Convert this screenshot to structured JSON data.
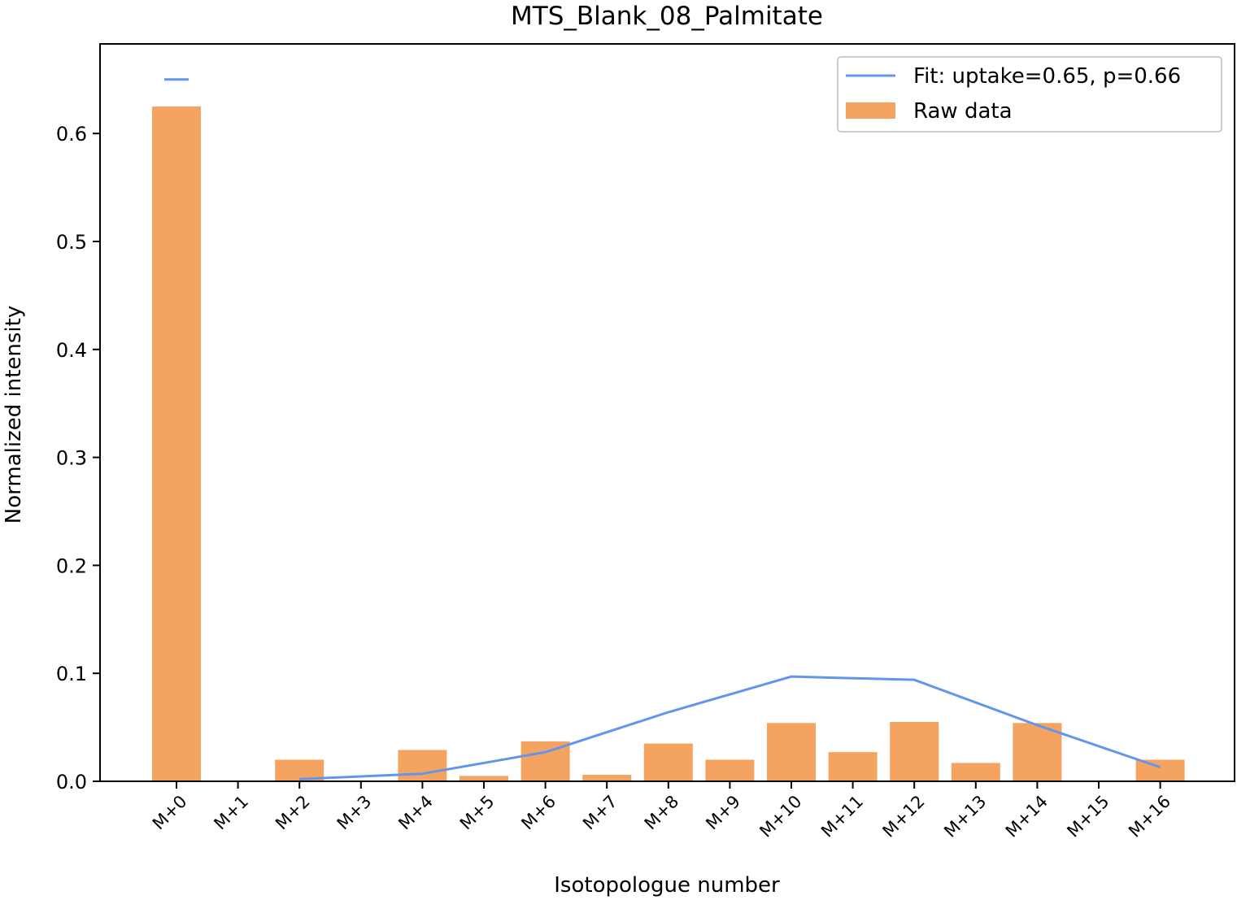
{
  "chart_data": {
    "type": "bar",
    "title": "MTS_Blank_08_Palmitate",
    "xlabel": "Isotopologue number",
    "ylabel": "Normalized intensity",
    "categories": [
      "M+0",
      "M+1",
      "M+2",
      "M+3",
      "M+4",
      "M+5",
      "M+6",
      "M+7",
      "M+8",
      "M+9",
      "M+10",
      "M+11",
      "M+12",
      "M+13",
      "M+14",
      "M+15",
      "M+16"
    ],
    "ylim": [
      0,
      0.66
    ],
    "yticks": [
      0.0,
      0.1,
      0.2,
      0.3,
      0.4,
      0.5,
      0.6
    ],
    "ytick_labels": [
      "0.0",
      "0.1",
      "0.2",
      "0.3",
      "0.4",
      "0.5",
      "0.6"
    ],
    "series": [
      {
        "name": "Raw data",
        "kind": "bar",
        "color": "#F4A460",
        "values": [
          0.625,
          0.0,
          0.02,
          0.0,
          0.029,
          0.005,
          0.037,
          0.006,
          0.035,
          0.02,
          0.054,
          0.027,
          0.055,
          0.017,
          0.054,
          0.0,
          0.02
        ]
      },
      {
        "name": "Fit: uptake=0.65, p=0.66",
        "kind": "line",
        "color": "#6495ED",
        "segments": [
          {
            "x": [
              0
            ],
            "y": [
              0.65
            ],
            "marker": "dash"
          },
          {
            "x": [
              2,
              4,
              6,
              8,
              10,
              12,
              14,
              16
            ],
            "y": [
              0.002,
              0.007,
              0.027,
              0.064,
              0.097,
              0.094,
              0.052,
              0.013
            ]
          }
        ]
      }
    ],
    "legend": {
      "position": "top-right",
      "entries": [
        "Fit: uptake=0.65, p=0.66",
        "Raw data"
      ]
    },
    "grid": false
  }
}
